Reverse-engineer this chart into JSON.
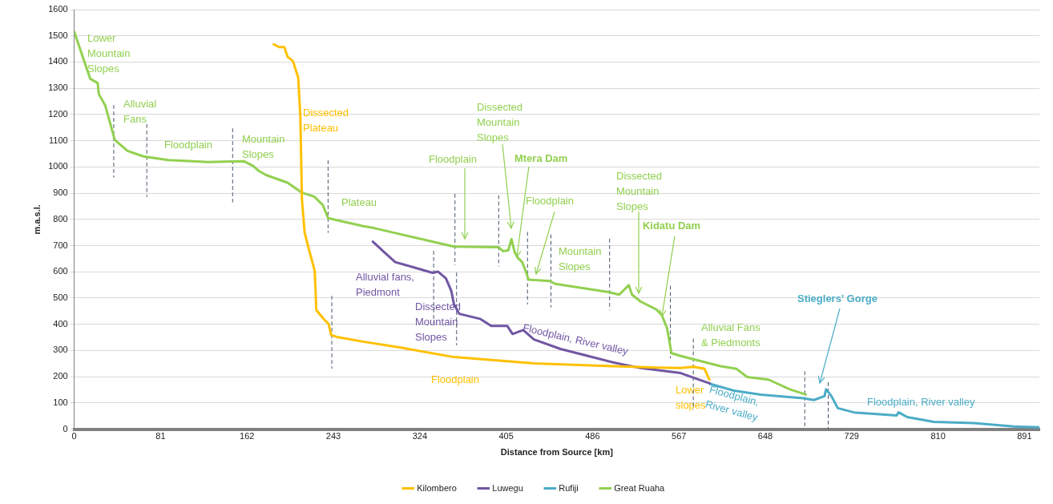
{
  "chart_data": {
    "type": "line",
    "xlabel": "Distance from Source [km]",
    "ylabel": "m.a.s.l.",
    "xlim": [
      0,
      905
    ],
    "xticks": [
      0,
      81,
      162,
      243,
      324,
      405,
      486,
      567,
      648,
      729,
      810,
      891
    ],
    "ylim": [
      0,
      1600
    ],
    "yticks": [
      0,
      100,
      200,
      300,
      400,
      500,
      600,
      700,
      800,
      900,
      1000,
      1100,
      1200,
      1300,
      1400,
      1500,
      1600
    ],
    "grid": "y",
    "legend": "bottom",
    "marker": "none",
    "line_style": "solid",
    "series": [
      {
        "name": "Kilombero",
        "color": "#ffc000",
        "x": [
          187,
          192,
          197,
          200,
          205,
          210,
          212,
          213.5,
          216,
          220,
          223.5,
          225.5,
          227,
          233.5,
          238.5,
          241,
          246,
          272,
          306,
          356,
          431,
          506,
          546,
          568,
          581,
          591,
          595.5
        ],
        "values": [
          1468,
          1457,
          1457,
          1420,
          1404,
          1341,
          1193,
          876,
          750,
          686,
          634,
          602,
          454,
          422,
          401,
          359,
          352,
          333,
          311,
          275,
          251,
          240,
          235,
          233,
          238,
          230,
          189
        ]
      },
      {
        "name": "Luwegu",
        "color": "#7156a3",
        "x": [
          280,
          291,
          301,
          318.5,
          336,
          341,
          348.5,
          353.5,
          356,
          361,
          381,
          391,
          406,
          411,
          421,
          431,
          456,
          481,
          506,
          531,
          568.5,
          593.5,
          596
        ],
        "values": [
          715,
          674,
          637,
          617,
          596,
          601,
          575,
          528,
          477,
          440,
          420,
          394,
          394,
          363,
          378,
          342,
          306,
          280,
          254,
          233,
          214,
          178,
          175
        ]
      },
      {
        "name": "Rufiji",
        "color": "#4bacc6",
        "x": [
          596,
          618.5,
          643.5,
          683.5,
          693.5,
          703.5,
          705,
          707,
          710,
          716,
          731,
          771,
          773,
          781,
          806,
          843.5,
          881,
          905
        ],
        "values": [
          173,
          147,
          132,
          118,
          111,
          126,
          152,
          142,
          126,
          80,
          64,
          52,
          64,
          46,
          28,
          23,
          10,
          7
        ]
      },
      {
        "name": "Great Ruaha",
        "color": "#92d050",
        "x": [
          0,
          15,
          22,
          23,
          29,
          38,
          50,
          65,
          88,
          125,
          148,
          159,
          168,
          173,
          180,
          200,
          213,
          225,
          233,
          238,
          271,
          281,
          356,
          398,
          402,
          407,
          410,
          413,
          416,
          420,
          423.5,
          426,
          446,
          451,
          501,
          511,
          520,
          523,
          531,
          546,
          551,
          556,
          560,
          568,
          581,
          606,
          621,
          631,
          651,
          671,
          686
        ],
        "values": [
          1515,
          1336,
          1320,
          1278,
          1235,
          1103,
          1061,
          1040,
          1026,
          1019,
          1021,
          1022,
          1003,
          985,
          969,
          940,
          903,
          887,
          855,
          805,
          774,
          767,
          696,
          694,
          679,
          682,
          725,
          674,
          653,
          637,
          601,
          570,
          565,
          554,
          523,
          513,
          549,
          513,
          487,
          456,
          435,
          383,
          290,
          280,
          266,
          240,
          230,
          199,
          189,
          152,
          132
        ]
      },
      {
        "color": "#44546a",
        "line_style": "dashed",
        "x": [
          37,
          37,
          null,
          68,
          68,
          null,
          148.5,
          148.5,
          null,
          238,
          238,
          null,
          241.5,
          241.5,
          null,
          337,
          337,
          null,
          357,
          357,
          null,
          358.5,
          358.5,
          null,
          398,
          398,
          null,
          425,
          425,
          null,
          447,
          447,
          null,
          502,
          502,
          null,
          559,
          559,
          null,
          580.5,
          580.5,
          null,
          685,
          685,
          null,
          707,
          707
        ],
        "values": [
          1235,
          961,
          null,
          1162,
          887,
          null,
          1146,
          866,
          null,
          1024,
          750,
          null,
          507,
          232,
          null,
          679,
          404,
          null,
          896,
          627,
          null,
          596,
          321,
          null,
          891,
          622,
          null,
          751,
          477,
          null,
          741,
          466,
          null,
          725,
          456,
          null,
          546,
          271,
          null,
          344,
          75,
          null,
          220,
          0,
          null,
          178,
          0
        ]
      }
    ],
    "annotations": [
      "Lower\nMountain\nSlopes",
      "Alluvial\nFans",
      "Floodplain",
      "Mountain\nSlopes",
      "Dissected\nPlateau",
      "Plateau",
      "Floodplain",
      "Dissected\nMountain\nSlopes",
      {
        "text": "Mtera Dam",
        "x": 415,
        "y": 656
      },
      "Floodplain",
      "Mountain\nSlopes",
      "Dissected\nMountain\nSlopes",
      {
        "text": "Kidatu Dam",
        "x": 551,
        "y": 430
      },
      "Alluvial Fans\n& Piedmonts",
      "Alluvial fans,\nPiedmont",
      "Dissected\nMountain\nSlopes",
      "Floodplain, River valley",
      "Floodplain",
      "Lower\nslopes",
      "Floodplain,\nRiver valley",
      "Stieglers' Gorge",
      "Floodplain, River valley"
    ]
  }
}
